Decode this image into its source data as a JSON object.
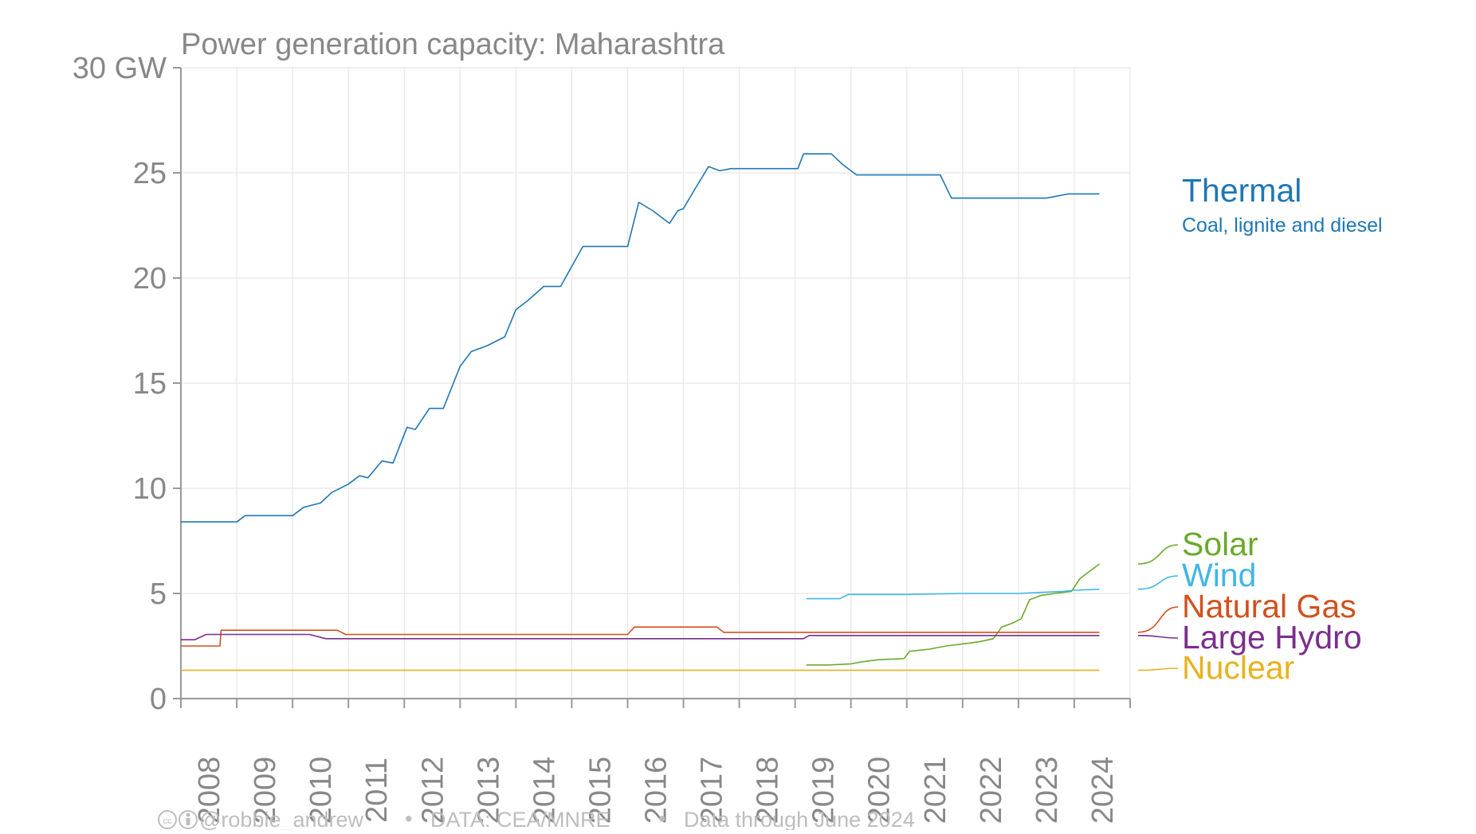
{
  "chart_data": {
    "type": "line",
    "title": "Power generation capacity: Maharashtra",
    "xlabel": "",
    "ylabel": "",
    "y_unit": "GW",
    "xlim": [
      2008,
      2025
    ],
    "ylim": [
      0,
      30
    ],
    "y_ticks": [
      0,
      5,
      10,
      15,
      20,
      25,
      30
    ],
    "y_tick_labels": [
      "0",
      "5",
      "10",
      "15",
      "20",
      "25",
      "30 GW"
    ],
    "x_ticks": [
      "2008",
      "2009",
      "2010",
      "2011",
      "2012",
      "2013",
      "2014",
      "2015",
      "2016",
      "2017",
      "2018",
      "2019",
      "2020",
      "2021",
      "2022",
      "2023",
      "2024"
    ],
    "grid": true,
    "legend": "right-inline",
    "series": [
      {
        "name": "Thermal",
        "subtitle": "Coal, lignite and diesel",
        "color": "#1f77b4",
        "x": [
          2008.0,
          2009.0,
          2009.15,
          2010.0,
          2010.2,
          2010.5,
          2010.7,
          2011.0,
          2011.2,
          2011.35,
          2011.6,
          2011.8,
          2012.05,
          2012.2,
          2012.45,
          2012.7,
          2013.0,
          2013.2,
          2013.5,
          2013.8,
          2014.0,
          2014.2,
          2014.5,
          2014.8,
          2015.2,
          2016.0,
          2016.2,
          2016.45,
          2016.75,
          2016.9,
          2017.0,
          2017.2,
          2017.45,
          2017.65,
          2017.85,
          2018.0,
          2018.5,
          2019.05,
          2019.15,
          2019.65,
          2019.85,
          2020.1,
          2020.5,
          2021.0,
          2021.6,
          2021.8,
          2022.0,
          2022.5,
          2023.0,
          2023.5,
          2023.9,
          2024.45
        ],
        "values": [
          8.4,
          8.4,
          8.7,
          8.7,
          9.1,
          9.3,
          9.8,
          10.2,
          10.6,
          10.5,
          11.3,
          11.2,
          12.9,
          12.8,
          13.8,
          13.8,
          15.8,
          16.5,
          16.8,
          17.2,
          18.5,
          18.9,
          19.6,
          19.6,
          21.5,
          21.5,
          23.6,
          23.2,
          22.6,
          23.2,
          23.3,
          24.2,
          25.3,
          25.1,
          25.2,
          25.2,
          25.2,
          25.2,
          25.9,
          25.9,
          25.4,
          24.9,
          24.9,
          24.9,
          24.9,
          23.8,
          23.8,
          23.8,
          23.8,
          23.8,
          24.0,
          24.0
        ]
      },
      {
        "name": "Solar",
        "color": "#6aaa2a",
        "x": [
          2019.2,
          2019.6,
          2020.0,
          2020.2,
          2020.5,
          2020.95,
          2021.05,
          2021.4,
          2021.7,
          2022.0,
          2022.3,
          2022.55,
          2022.7,
          2022.9,
          2023.05,
          2023.2,
          2023.4,
          2023.65,
          2023.95,
          2024.1,
          2024.45
        ],
        "values": [
          1.6,
          1.6,
          1.65,
          1.75,
          1.85,
          1.9,
          2.25,
          2.35,
          2.5,
          2.6,
          2.7,
          2.85,
          3.4,
          3.6,
          3.8,
          4.7,
          4.9,
          5.0,
          5.1,
          5.7,
          6.4
        ]
      },
      {
        "name": "Wind",
        "color": "#41b6e6",
        "x": [
          2019.2,
          2019.8,
          2019.95,
          2021.0,
          2022.0,
          2023.0,
          2023.4,
          2023.8,
          2024.0,
          2024.45
        ],
        "values": [
          4.75,
          4.75,
          4.95,
          4.95,
          5.0,
          5.0,
          5.05,
          5.1,
          5.15,
          5.2
        ]
      },
      {
        "name": "Natural Gas",
        "color": "#d2501e",
        "x": [
          2008.0,
          2008.7,
          2008.72,
          2010.8,
          2010.95,
          2016.0,
          2016.12,
          2017.6,
          2017.72,
          2019.0,
          2020.0,
          2022.0,
          2024.45
        ],
        "values": [
          2.5,
          2.5,
          3.25,
          3.25,
          3.05,
          3.05,
          3.4,
          3.4,
          3.15,
          3.15,
          3.15,
          3.15,
          3.15
        ]
      },
      {
        "name": "Large Hydro",
        "color": "#7b2d8e",
        "x": [
          2008.0,
          2008.25,
          2008.45,
          2010.3,
          2010.6,
          2019.15,
          2019.25,
          2024.45
        ],
        "values": [
          2.8,
          2.8,
          3.05,
          3.05,
          2.85,
          2.85,
          3.0,
          3.0
        ]
      },
      {
        "name": "Nuclear",
        "color": "#e8b21e",
        "x": [
          2008.0,
          2024.45
        ],
        "values": [
          1.35,
          1.35
        ]
      }
    ]
  },
  "footer": {
    "credit": "@robbie_andrew",
    "source": "DATA: CEA/MNRE",
    "note": "Data through June 2024",
    "separator": "•"
  }
}
